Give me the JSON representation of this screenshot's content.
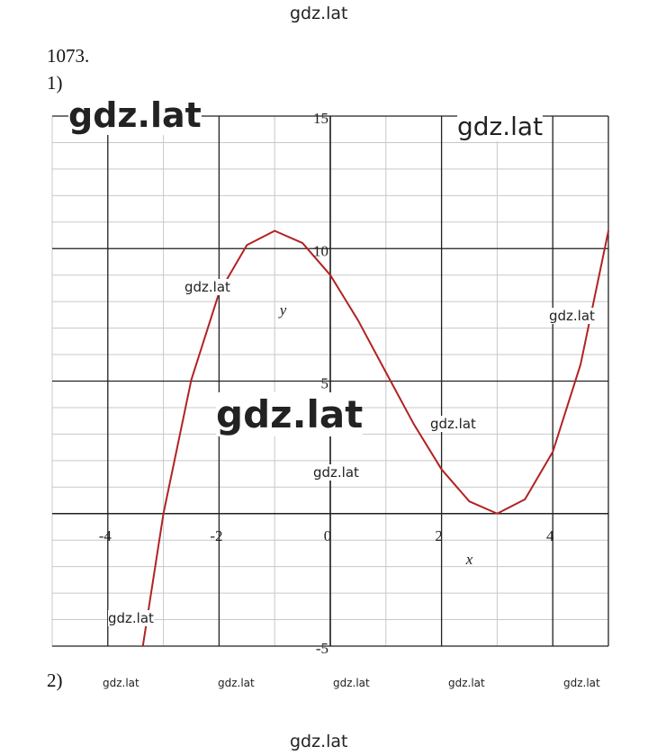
{
  "problem": "1073.",
  "parts": [
    "1)",
    "2)"
  ],
  "chart_data": {
    "type": "line",
    "xlabel": "x",
    "ylabel": "y",
    "x": [
      -3.37,
      -3,
      -2.5,
      -2,
      -1.5,
      -1,
      -0.5,
      0,
      0.5,
      1,
      1.5,
      2,
      2.5,
      3,
      3.5,
      4,
      4.5,
      5
    ],
    "series": [
      {
        "color": "#b22222",
        "values": [
          -5,
          0,
          5.04,
          8.33,
          10.13,
          10.67,
          10.21,
          9,
          7.29,
          5.33,
          3.38,
          1.67,
          0.46,
          0,
          0.54,
          2.33,
          5.63,
          10.67
        ]
      }
    ],
    "xlim": [
      -5,
      5
    ],
    "ylim": [
      -5,
      15
    ],
    "xticks": [
      -4,
      -2,
      0,
      2,
      4
    ],
    "yticks": [
      -5,
      5,
      10,
      15
    ],
    "grid": true
  },
  "watermarks": [
    "gdz.lat",
    "gdz.lat",
    "gdz.lat",
    "gdz.lat",
    "gdz.lat",
    "gdz.lat",
    "gdz.lat",
    "gdz.lat",
    "gdz.lat",
    "gdz.lat",
    "gdz.lat",
    "gdz.lat",
    "gdz.lat",
    "gdz.lat",
    "gdz.lat"
  ]
}
